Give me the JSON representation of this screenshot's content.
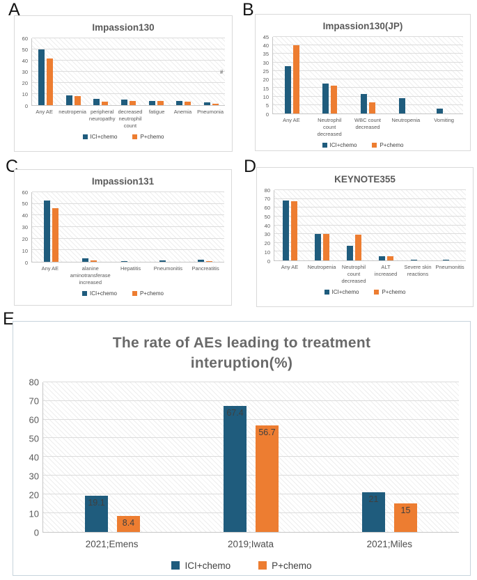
{
  "figure": {
    "stray_mark": "#"
  },
  "colors": {
    "ici_chemo": "#1F5C7D",
    "p_chemo": "#ED7D31",
    "gridline": "#dcdcdc",
    "title_text": "#595959",
    "axis_text": "#595959"
  },
  "chart_data": [
    {
      "panel": "A",
      "type": "bar",
      "title": "Impassion130",
      "ylim": [
        0,
        60
      ],
      "yticks": [
        0,
        10,
        20,
        30,
        40,
        50,
        60
      ],
      "grid": true,
      "legend_position": "bottom",
      "categories": [
        "Any AE",
        "neutropenia",
        "peripheral neuropathy",
        "decreased neutrophil count",
        "fatigue",
        "Anemia",
        "Pneumonia"
      ],
      "series": [
        {
          "name": "ICI+chemo",
          "color": "#1F5C7D",
          "values": [
            50,
            8.5,
            5.5,
            5,
            4,
            3.5,
            2.5
          ]
        },
        {
          "name": "P+chemo",
          "color": "#ED7D31",
          "values": [
            42,
            8,
            3,
            4,
            3.5,
            3,
            1
          ]
        }
      ]
    },
    {
      "panel": "B",
      "type": "bar",
      "title": "Impassion130(JP)",
      "ylim": [
        0,
        45
      ],
      "yticks": [
        0,
        5,
        10,
        15,
        20,
        25,
        30,
        35,
        40,
        45
      ],
      "grid": true,
      "legend_position": "bottom",
      "categories": [
        "Any AE",
        "Neutrophil count decreased",
        "WBC count decreased",
        "Neutropenia",
        "Vomiting"
      ],
      "series": [
        {
          "name": "ICI+chemo",
          "color": "#1F5C7D",
          "values": [
            28,
            17.5,
            11.5,
            9,
            3
          ]
        },
        {
          "name": "P+chemo",
          "color": "#ED7D31",
          "values": [
            40,
            16.5,
            6.5,
            0,
            0
          ]
        }
      ]
    },
    {
      "panel": "C",
      "type": "bar",
      "title": "Impassion131",
      "ylim": [
        0,
        60
      ],
      "yticks": [
        0,
        10,
        20,
        30,
        40,
        50,
        60
      ],
      "grid": true,
      "legend_position": "bottom",
      "categories": [
        "Any AE",
        "alanine aminotransferase increased",
        "Hepatitis",
        "Pneumonitis",
        "Pancreatitis"
      ],
      "series": [
        {
          "name": "ICI+chemo",
          "color": "#1F5C7D",
          "values": [
            53,
            3,
            0.5,
            1,
            2
          ]
        },
        {
          "name": "P+chemo",
          "color": "#ED7D31",
          "values": [
            46,
            1,
            0,
            0,
            0.5
          ]
        }
      ]
    },
    {
      "panel": "D",
      "type": "bar",
      "title": "KEYNOTE355",
      "ylim": [
        0,
        80
      ],
      "yticks": [
        0,
        10,
        20,
        30,
        40,
        50,
        60,
        70,
        80
      ],
      "grid": true,
      "legend_position": "bottom",
      "categories": [
        "Any AE",
        "Neutropenia",
        "Neutrophil count decreased",
        "ALT increased",
        "Severe skin reactions",
        "Pneumonitis"
      ],
      "series": [
        {
          "name": "ICI+chemo",
          "color": "#1F5C7D",
          "values": [
            68,
            30,
            17,
            5,
            1,
            1
          ]
        },
        {
          "name": "P+chemo",
          "color": "#ED7D31",
          "values": [
            67,
            30,
            29,
            5,
            0,
            0
          ]
        }
      ]
    },
    {
      "panel": "E",
      "type": "bar",
      "title": "The rate of AEs leading to treatment interuption(%)",
      "ylim": [
        0,
        80
      ],
      "yticks": [
        0,
        10,
        20,
        30,
        40,
        50,
        60,
        70,
        80
      ],
      "grid": true,
      "legend_position": "bottom",
      "show_data_labels": true,
      "categories": [
        "2021;Emens",
        "2019;Iwata",
        "2021;Miles"
      ],
      "series": [
        {
          "name": "ICI+chemo",
          "color": "#1F5C7D",
          "values": [
            19.1,
            67.4,
            21
          ],
          "data_labels": [
            "19.1",
            "67.4",
            "21"
          ]
        },
        {
          "name": "P+chemo",
          "color": "#ED7D31",
          "values": [
            8.4,
            56.7,
            15
          ],
          "data_labels": [
            "8.4",
            "56.7",
            "15"
          ]
        }
      ]
    }
  ]
}
